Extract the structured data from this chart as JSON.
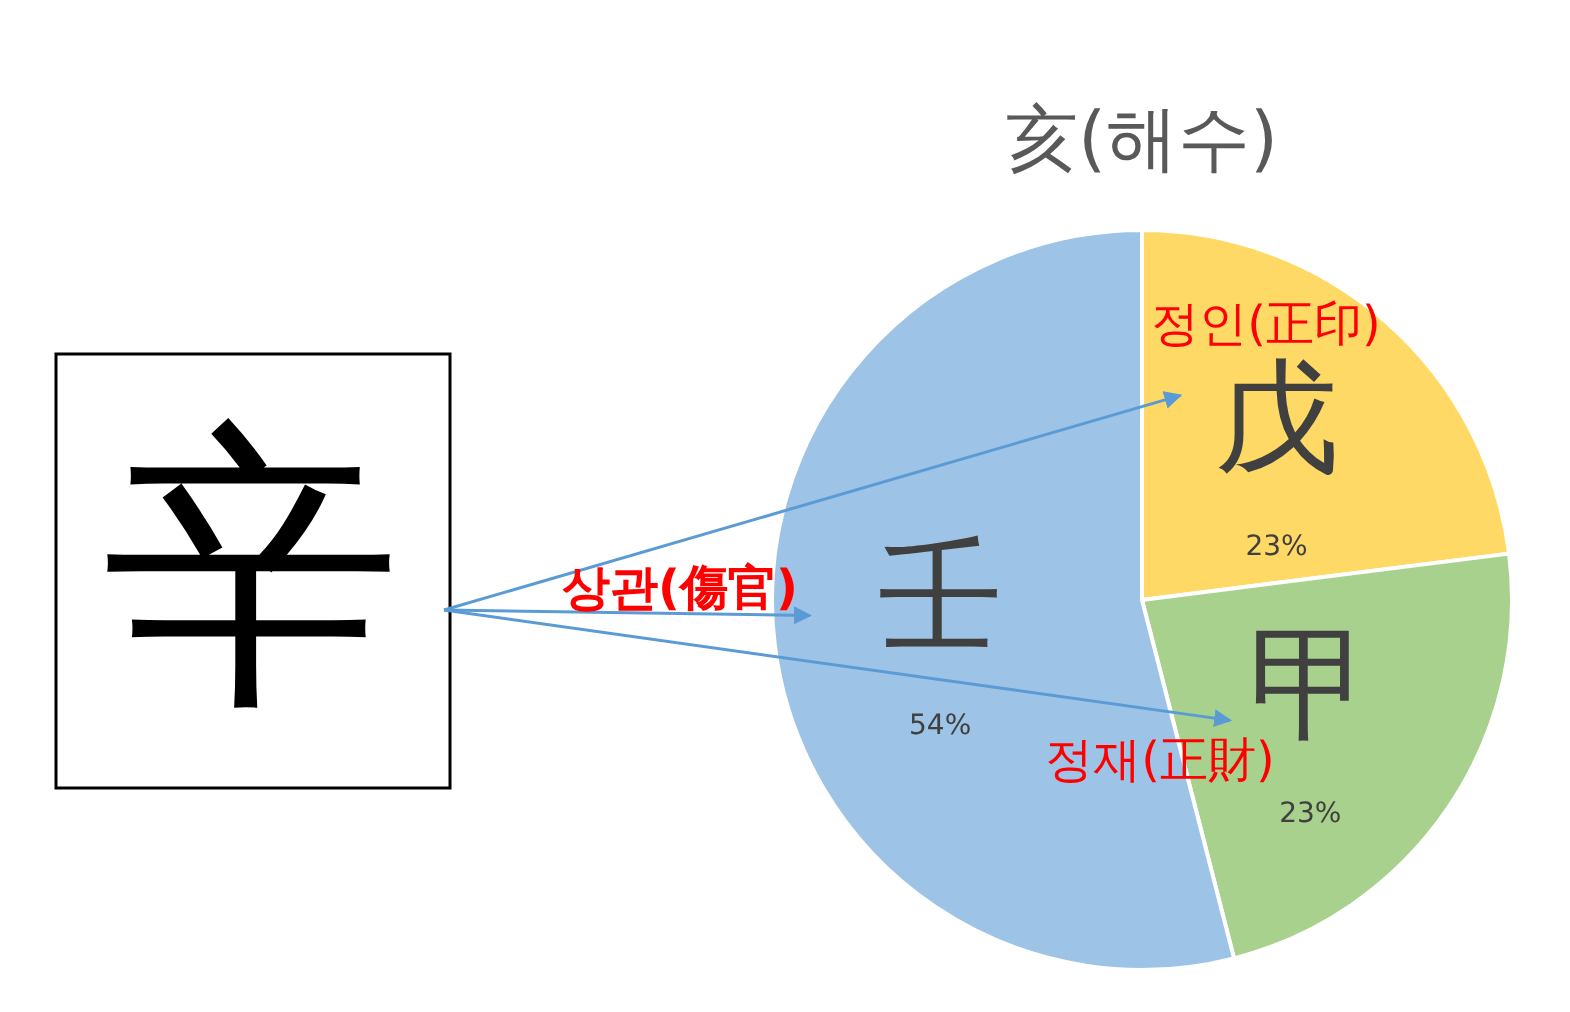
{
  "chart_data": {
    "type": "pie",
    "title": "亥(해수)",
    "categories": [
      "戊",
      "甲",
      "壬"
    ],
    "values": [
      23,
      23,
      54
    ],
    "colors": [
      "#ffd966",
      "#a9d18e",
      "#9dc3e6"
    ],
    "value_labels": [
      "23%",
      "23%",
      "54%"
    ],
    "annotations": [
      "辛",
      "정인(正印)",
      "상관(傷官)",
      "정재(正財)"
    ]
  }
}
